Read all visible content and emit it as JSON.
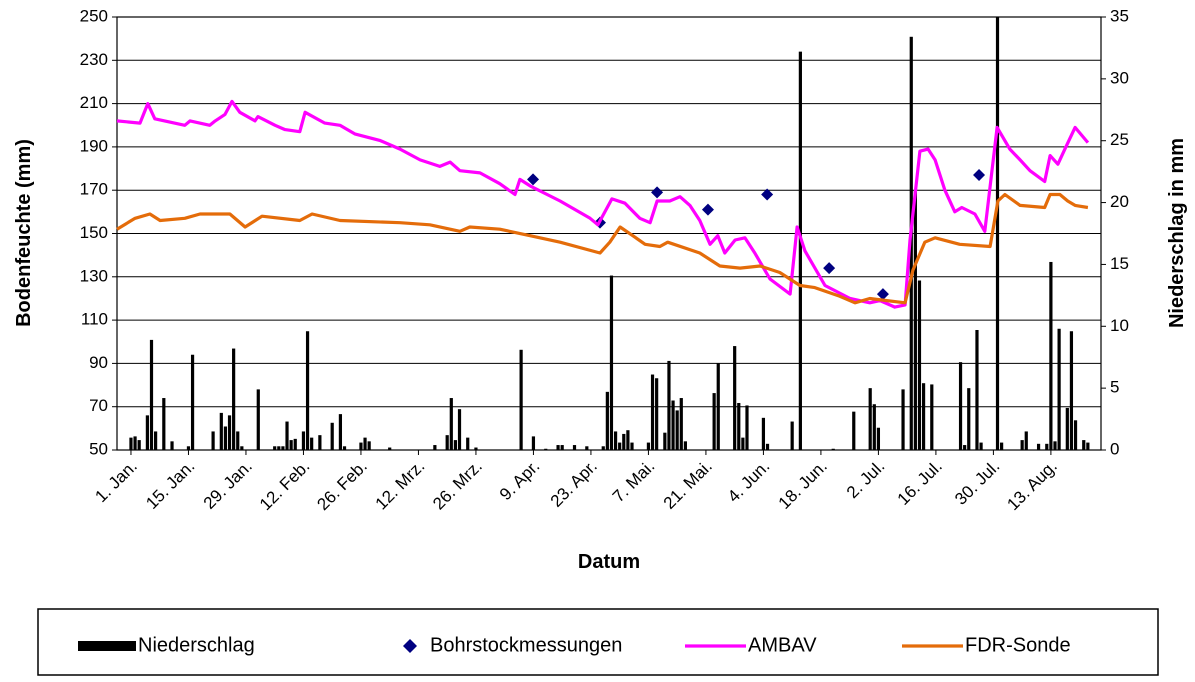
{
  "chart_data": {
    "type": "combo",
    "xlabel": "Datum",
    "ylabel": "Bodenfeuchte (mm)",
    "y2label": "Niederschlag in mm",
    "xlim": [
      -3.4,
      236.2
    ],
    "ylim": [
      50,
      250
    ],
    "y2lim": [
      0,
      35
    ],
    "xticks": [
      {
        "value": 0,
        "label": "1. Jan."
      },
      {
        "value": 14,
        "label": "15. Jan."
      },
      {
        "value": 28,
        "label": "29. Jan."
      },
      {
        "value": 42,
        "label": "12. Feb."
      },
      {
        "value": 56,
        "label": "26. Feb."
      },
      {
        "value": 70,
        "label": "12. Mrz."
      },
      {
        "value": 84,
        "label": "26. Mrz."
      },
      {
        "value": 98,
        "label": "9. Apr."
      },
      {
        "value": 112,
        "label": "23. Apr."
      },
      {
        "value": 126,
        "label": "7. Mai."
      },
      {
        "value": 140,
        "label": "21. Mai."
      },
      {
        "value": 154,
        "label": "4. Jun."
      },
      {
        "value": 168,
        "label": "18. Jun."
      },
      {
        "value": 182,
        "label": "2. Jul."
      },
      {
        "value": 196,
        "label": "16. Jul."
      },
      {
        "value": 210,
        "label": "30. Jul."
      },
      {
        "value": 224,
        "label": "13. Aug."
      }
    ],
    "yticks": [
      50,
      70,
      90,
      110,
      130,
      150,
      170,
      190,
      210,
      230,
      250
    ],
    "y2ticks": [
      0,
      5,
      10,
      15,
      20,
      25,
      30,
      35
    ],
    "grid": true,
    "legend": "bottom",
    "series": [
      {
        "name": "Niederschlag",
        "type": "bar",
        "axis": "y2",
        "color": "#000000",
        "x": [
          0,
          1,
          2,
          4,
          5,
          6,
          8,
          10,
          14,
          15,
          20,
          22,
          23,
          24,
          25,
          26,
          27,
          31,
          35,
          36,
          37,
          38,
          39,
          40,
          42,
          43,
          44,
          46,
          49,
          51,
          52,
          56,
          57,
          58,
          63,
          74,
          77,
          78,
          79,
          80,
          82,
          84,
          95,
          98,
          101,
          104,
          105,
          108,
          111,
          115,
          116,
          117,
          118,
          119,
          120,
          121,
          122,
          126,
          127,
          128,
          130,
          131,
          132,
          133,
          134,
          135,
          142,
          143,
          147,
          148,
          149,
          150,
          154,
          155,
          161,
          163,
          171,
          176,
          180,
          181,
          182,
          188,
          190,
          191,
          192,
          193,
          195,
          202,
          203,
          204,
          206,
          207,
          211,
          212,
          217,
          218,
          221,
          223,
          224,
          225,
          226,
          228,
          229,
          230,
          232,
          233
        ],
        "values": [
          1.0,
          1.1,
          0.8,
          2.8,
          8.9,
          1.5,
          4.2,
          0.7,
          0.3,
          7.7,
          1.5,
          3.0,
          1.9,
          2.8,
          8.2,
          1.5,
          0.3,
          4.9,
          0.3,
          0.3,
          0.3,
          2.3,
          0.8,
          0.9,
          1.5,
          9.6,
          1.0,
          1.2,
          2.2,
          2.9,
          0.3,
          0.6,
          1.0,
          0.7,
          0.2,
          0.4,
          1.2,
          4.2,
          0.8,
          3.3,
          1.0,
          0.2,
          8.1,
          1.1,
          0.1,
          0.4,
          0.4,
          0.4,
          0.3,
          0.3,
          4.7,
          14.1,
          1.5,
          0.6,
          1.3,
          1.6,
          0.6,
          0.6,
          6.1,
          5.8,
          1.4,
          7.2,
          4.0,
          3.2,
          4.2,
          0.7,
          4.6,
          7.0,
          8.4,
          3.8,
          1.0,
          3.6,
          2.6,
          0.5,
          2.3,
          32.2,
          0.1,
          3.1,
          5.0,
          3.7,
          1.8,
          4.9,
          33.4,
          21.0,
          13.7,
          5.4,
          5.3,
          7.1,
          0.4,
          5.0,
          9.7,
          0.6,
          35,
          0.6,
          0.8,
          1.5,
          0.5,
          0.5,
          15.2,
          0.7,
          9.8,
          3.4,
          9.6,
          2.4,
          0.8,
          0.6
        ]
      },
      {
        "name": "Bohrstockmessungen",
        "type": "scatter",
        "color": "#000080",
        "x": [
          97.9,
          114.2,
          128.1,
          140.5,
          154.9,
          170.0,
          183.1,
          206.5
        ],
        "values": [
          175,
          155,
          169,
          161,
          168,
          134,
          122,
          177
        ]
      },
      {
        "name": "AMBAV",
        "type": "line",
        "color": "#ff00ff",
        "x": [
          -3.4,
          2.2,
          4.1,
          5.8,
          13.1,
          14.4,
          19.2,
          20.5,
          22.9,
          24.6,
          26.5,
          30.2,
          30.9,
          35.1,
          37.5,
          41.1,
          42.4,
          47.2,
          50.9,
          54.5,
          60.6,
          65.5,
          70.4,
          75.2,
          77.7,
          80.1,
          85.0,
          89.8,
          93.5,
          94.7,
          97.2,
          104.5,
          111.8,
          113.7,
          117.1,
          120.3,
          123.9,
          126.4,
          128.1,
          131.2,
          133.7,
          136.1,
          138.5,
          141.0,
          142.9,
          144.6,
          147.1,
          149.5,
          151.9,
          155.6,
          160.5,
          162.2,
          164.1,
          169.0,
          175.1,
          179.9,
          182.4,
          186.0,
          188.5,
          189.7,
          192.1,
          194.1,
          195.8,
          198.2,
          200.6,
          202.3,
          205.5,
          207.9,
          210.9,
          214.0,
          216.5,
          218.9,
          222.5,
          223.8,
          225.7,
          227.4,
          229.9,
          233.0
        ],
        "values": [
          202,
          201,
          210,
          203,
          200,
          202,
          200,
          202,
          205,
          211,
          206,
          202,
          204,
          200,
          198,
          197,
          206,
          201,
          200,
          196,
          193,
          189,
          184,
          181,
          183,
          179,
          178,
          173,
          168,
          175,
          172,
          165,
          157,
          154,
          166,
          164,
          157,
          155,
          165,
          165,
          167,
          163,
          156,
          145,
          149,
          141,
          147,
          148,
          141,
          129,
          122,
          153,
          142,
          126,
          120,
          118,
          119,
          116,
          117,
          147,
          188,
          189,
          184,
          170,
          160,
          162,
          159,
          151,
          199,
          189,
          184,
          179,
          174,
          186,
          182,
          189,
          199,
          192
        ]
      },
      {
        "name": "FDR-Sonde",
        "type": "line",
        "color": "#e46c0a",
        "x": [
          -3.4,
          1.0,
          4.6,
          7.1,
          13.1,
          16.8,
          24.1,
          27.8,
          31.9,
          41.1,
          44.1,
          50.9,
          65.5,
          72.8,
          80.1,
          82.5,
          89.8,
          97.2,
          104.5,
          114.2,
          116.6,
          119.1,
          122.2,
          125.2,
          128.8,
          130.7,
          138.5,
          143.4,
          148.3,
          153.2,
          158.0,
          162.9,
          166.5,
          172.6,
          176.3,
          179.9,
          188.5,
          190.4,
          193.3,
          195.8,
          201.8,
          209.2,
          211.1,
          212.8,
          216.5,
          222.5,
          223.8,
          226.2,
          228.1,
          229.9,
          233.0
        ],
        "values": [
          152,
          157,
          159,
          156,
          157,
          159,
          159,
          153,
          158,
          156,
          159,
          156,
          155,
          154,
          151,
          153,
          152,
          149,
          146,
          141,
          146,
          153,
          149,
          145,
          144,
          146,
          141,
          135,
          134,
          135,
          132,
          126,
          125,
          121,
          118,
          120,
          118,
          133,
          146,
          148,
          145,
          144,
          165,
          168,
          163,
          162,
          168,
          168,
          165,
          163,
          162
        ]
      }
    ]
  }
}
